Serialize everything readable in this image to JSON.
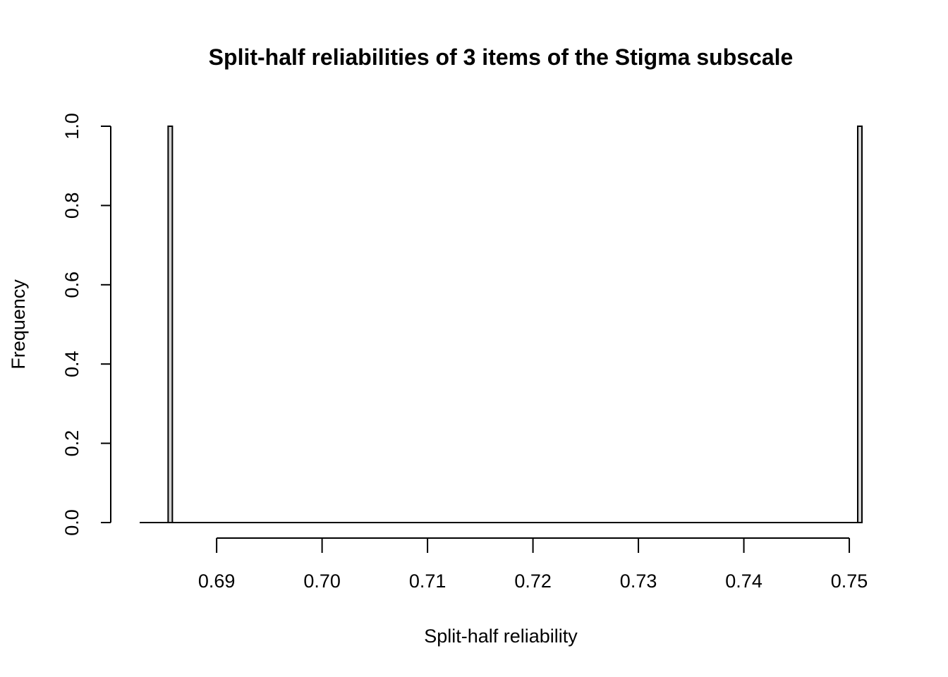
{
  "chart_data": {
    "type": "bar",
    "title": "Split-half reliabilities of 3 items of the Stigma subscale",
    "xlabel": "Split-half reliability",
    "ylabel": "Frequency",
    "x_ticks": [
      "0.69",
      "0.70",
      "0.71",
      "0.72",
      "0.73",
      "0.74",
      "0.75"
    ],
    "y_ticks": [
      "0.0",
      "0.2",
      "0.4",
      "0.6",
      "0.8",
      "1.0"
    ],
    "xlim": [
      0.6827,
      0.7512
    ],
    "ylim": [
      0,
      1
    ],
    "bins": [
      {
        "x_start": 0.6854,
        "x_end": 0.6858,
        "count": 1
      },
      {
        "x_start": 0.7508,
        "x_end": 0.7512,
        "count": 1
      }
    ],
    "grid": false,
    "legend": "none"
  }
}
